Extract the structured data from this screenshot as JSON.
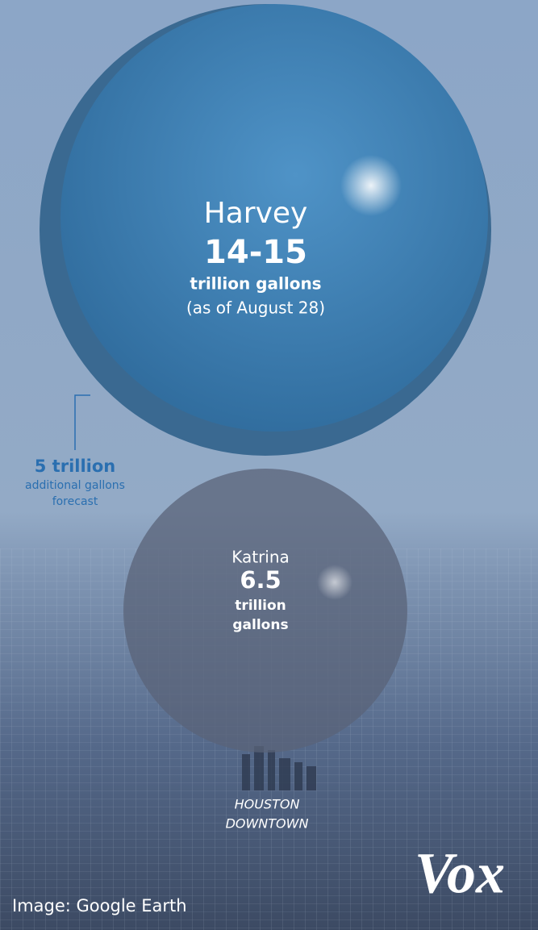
{
  "harvey": {
    "name": "Harvey",
    "amount": "14-15",
    "unit": "trillion gallons",
    "note": "(as of August 28)"
  },
  "forecast": {
    "amount": "5 trillion",
    "line1": "additional gallons",
    "line2": "forecast"
  },
  "katrina": {
    "name": "Katrina",
    "amount": "6.5",
    "line1": "trillion",
    "line2": "gallons"
  },
  "place": {
    "line1": "HOUSTON",
    "line2": "DOWNTOWN"
  },
  "logo": "Vox",
  "credit": "Image: Google Earth"
}
